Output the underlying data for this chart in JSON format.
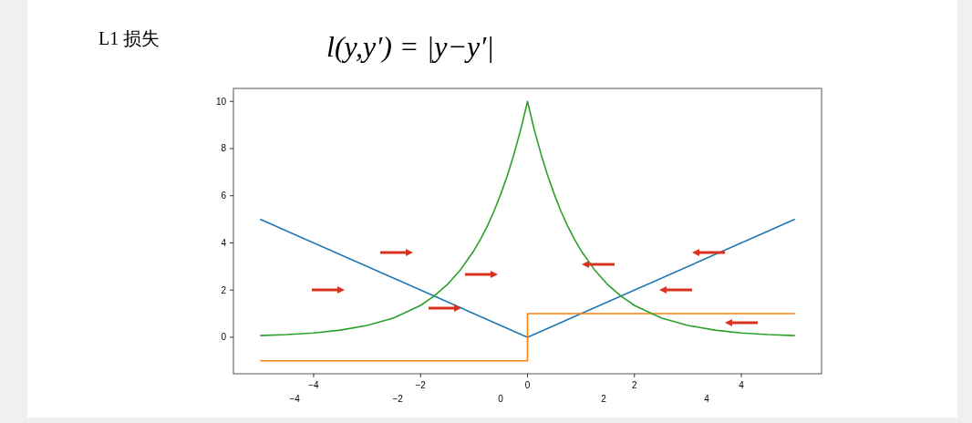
{
  "chart_data": {
    "type": "line",
    "title": "L1 损失",
    "subtitle": "l(y,y′) = |y−y′|",
    "xlim": [
      -5.5,
      5.5
    ],
    "xticks": [
      {
        "value": -4,
        "label": "−4"
      },
      {
        "value": -2,
        "label": "−2"
      },
      0,
      2,
      4
    ],
    "x2lim": [
      -5.19,
      6.23
    ],
    "x2ticks": [
      {
        "value": -4,
        "label": "−4"
      },
      {
        "value": -2,
        "label": "−2"
      },
      0,
      2,
      4
    ],
    "ylim": [
      -1.55,
      10.55
    ],
    "yticks": [
      0,
      2,
      4,
      6,
      8,
      10
    ],
    "series": [
      {
        "color": "#1f77b4",
        "x": [
          -5,
          0,
          5
        ],
        "values": [
          5,
          0,
          5
        ]
      },
      {
        "color": "#ff7f0e",
        "x": [
          -5,
          0,
          0,
          5
        ],
        "values": [
          -1,
          -1,
          1,
          1
        ]
      },
      {
        "color": "#2ca02c",
        "x": [
          -5,
          -4.5,
          -4,
          -3.5,
          -3,
          -2.5,
          -2,
          -1.75,
          -1.5,
          -1.25,
          -1,
          -0.875,
          -0.75,
          -0.625,
          -0.5,
          -0.375,
          -0.25,
          -0.125,
          0,
          0.125,
          0.25,
          0.375,
          0.5,
          0.625,
          0.75,
          0.875,
          1,
          1.25,
          1.5,
          1.75,
          2,
          2.5,
          3,
          3.5,
          4,
          4.5,
          5
        ],
        "values": [
          0.07,
          0.11,
          0.18,
          0.3,
          0.5,
          0.82,
          1.35,
          1.74,
          2.23,
          2.87,
          3.68,
          4.17,
          4.72,
          5.35,
          6.07,
          6.87,
          7.79,
          8.82,
          10,
          8.82,
          7.79,
          6.87,
          6.07,
          5.35,
          4.72,
          4.17,
          3.68,
          2.87,
          2.23,
          1.74,
          1.35,
          0.82,
          0.5,
          0.3,
          0.18,
          0.11,
          0.07
        ]
      }
    ]
  }
}
